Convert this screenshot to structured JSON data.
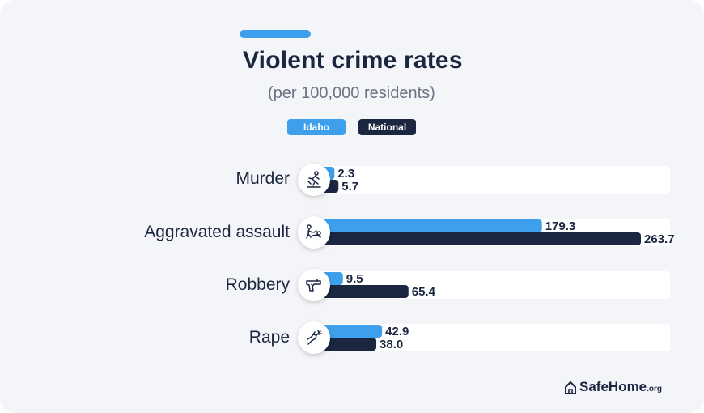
{
  "colors": {
    "idaho": "#3ea0ec",
    "national": "#1b2640"
  },
  "title": "Violent crime rates",
  "subtitle": "(per 100,000 residents)",
  "legend": {
    "idaho": "Idaho",
    "national": "National"
  },
  "brand": {
    "name": "SafeHome",
    "suffix": ".org"
  },
  "chart_data": {
    "type": "bar",
    "orientation": "horizontal",
    "title": "Violent crime rates",
    "subtitle": "(per 100,000 residents)",
    "categories": [
      "Murder",
      "Aggravated assault",
      "Robbery",
      "Rape"
    ],
    "category_icons": [
      "murder-icon",
      "assault-icon",
      "gun-icon",
      "hand-icon"
    ],
    "series": [
      {
        "name": "Idaho",
        "values": [
          2.3,
          179.3,
          9.5,
          42.9
        ],
        "labels": [
          "2.3",
          "179.3",
          "9.5",
          "42.9"
        ]
      },
      {
        "name": "National",
        "values": [
          5.7,
          263.7,
          65.4,
          38.0
        ],
        "labels": [
          "5.7",
          "263.7",
          "65.4",
          "38.0"
        ]
      }
    ],
    "xlim": [
      0,
      263.7
    ],
    "legend_position": "top",
    "grid": false
  }
}
